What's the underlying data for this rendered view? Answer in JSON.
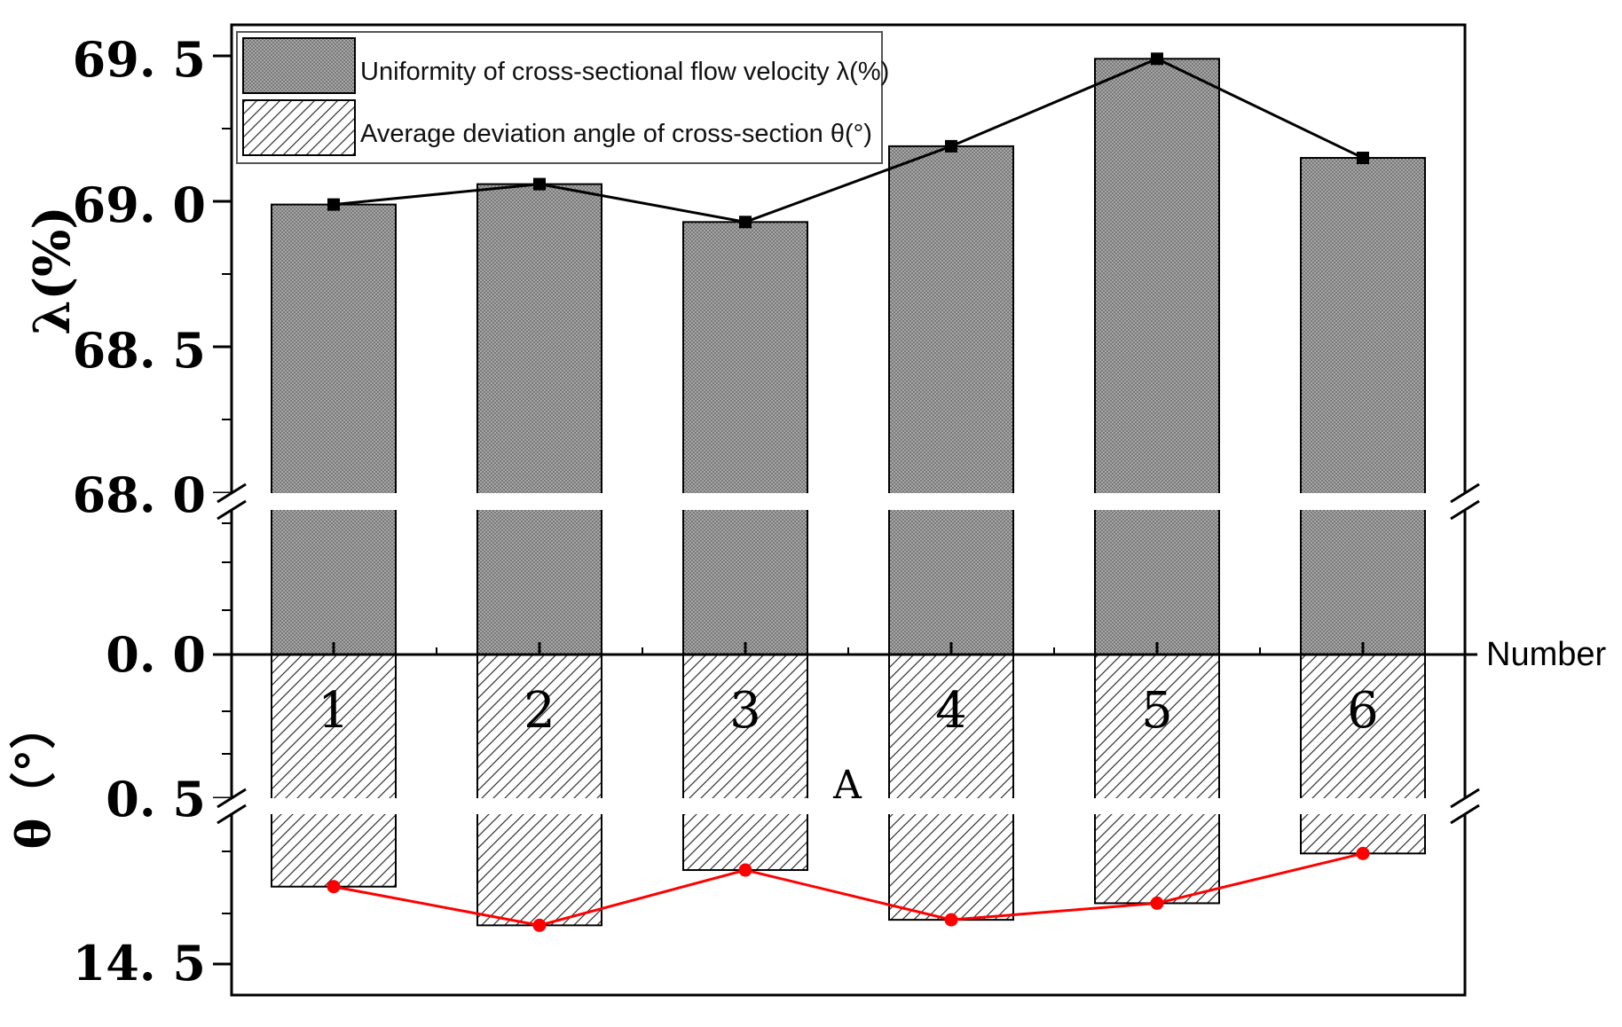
{
  "chart_data": {
    "type": "bar",
    "categories": [
      "1",
      "2",
      "3",
      "4",
      "5",
      "6"
    ],
    "series": [
      {
        "name": "Uniformity of cross-sectional flow velocity λ(%)",
        "values": [
          68.99,
          69.06,
          68.93,
          69.19,
          69.49,
          69.15
        ],
        "color": "#000000",
        "fill": "crosshatch-grey"
      },
      {
        "name": "Average deviation angle of cross-section θ(°)",
        "values": [
          14.64,
          14.57,
          14.67,
          14.58,
          14.61,
          14.7
        ],
        "color": "#ff0000",
        "fill": "diagonal-hatch"
      }
    ],
    "upper_axis": {
      "label": "λ(%)",
      "broken_range": [
        68.0,
        69.5
      ],
      "ticks": [
        "69. 5",
        "69. 0",
        "68. 5",
        "68. 0"
      ]
    },
    "lower_axis": {
      "label": "θ（°）",
      "zero_tick": "0. 0",
      "break_tick": "0. 5",
      "bottom_tick": "14. 5",
      "inverted": true
    },
    "xlabel": "Number",
    "annotation": "A",
    "legend_position": "top-left"
  }
}
